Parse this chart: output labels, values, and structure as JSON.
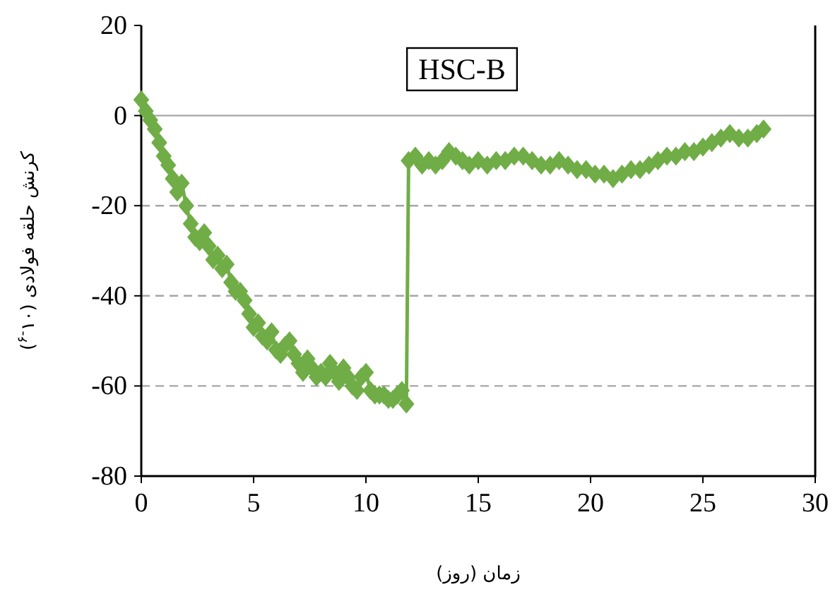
{
  "chart_data": {
    "type": "line",
    "title": "HSC-B",
    "xlabel": "زمان (روز)",
    "ylabel": "کرنش حلقه فولادی (۱۰$^{-۶}$)",
    "x": [
      0,
      0.2,
      0.4,
      0.6,
      0.8,
      1.0,
      1.2,
      1.4,
      1.6,
      1.8,
      2.0,
      2.2,
      2.4,
      2.6,
      2.8,
      3.0,
      3.2,
      3.4,
      3.6,
      3.8,
      4.0,
      4.2,
      4.4,
      4.6,
      4.8,
      5.0,
      5.2,
      5.4,
      5.6,
      5.8,
      6.0,
      6.2,
      6.4,
      6.6,
      6.8,
      7.0,
      7.2,
      7.4,
      7.6,
      7.8,
      8.0,
      8.2,
      8.4,
      8.6,
      8.8,
      9.0,
      9.2,
      9.4,
      9.6,
      9.8,
      10.0,
      10.2,
      10.4,
      10.6,
      10.8,
      11.0,
      11.2,
      11.4,
      11.6,
      11.8,
      11.9,
      12.2,
      12.5,
      12.8,
      13.1,
      13.4,
      13.7,
      14.0,
      14.3,
      14.6,
      15.0,
      15.4,
      15.8,
      16.2,
      16.6,
      17.0,
      17.4,
      17.8,
      18.2,
      18.6,
      19.0,
      19.4,
      19.8,
      20.2,
      20.6,
      21.0,
      21.4,
      21.8,
      22.2,
      22.6,
      23.0,
      23.4,
      23.8,
      24.2,
      24.6,
      25.0,
      25.4,
      25.8,
      26.2,
      26.6,
      27.0,
      27.4,
      27.7
    ],
    "series": [
      {
        "color": "#70ad47",
        "values": [
          3.5,
          1,
          -1,
          -3,
          -6,
          -9,
          -11,
          -14,
          -17,
          -15,
          -20,
          -24,
          -27,
          -28,
          -26,
          -29,
          -32,
          -31,
          -34,
          -33,
          -37,
          -39,
          -39,
          -41,
          -44,
          -47,
          -46,
          -49,
          -50,
          -48,
          -52,
          -53,
          -51,
          -50,
          -53,
          -55,
          -57,
          -54,
          -56,
          -58,
          -57,
          -58,
          -55,
          -57,
          -59,
          -56,
          -58,
          -60,
          -61,
          -58,
          -57,
          -61,
          -62,
          -62,
          -62,
          -63,
          -63,
          -62,
          -61,
          -64,
          -10,
          -9,
          -11,
          -10,
          -11,
          -10,
          -8,
          -9,
          -10,
          -11,
          -10,
          -11,
          -10,
          -10,
          -9,
          -9,
          -10,
          -11,
          -11,
          -10,
          -11,
          -12,
          -12,
          -13,
          -13,
          -14,
          -13,
          -12,
          -12,
          -11,
          -10,
          -9,
          -9,
          -8,
          -8,
          -7,
          -6,
          -5,
          -4,
          -5,
          -5,
          -4,
          -3
        ]
      }
    ],
    "xlim": [
      0,
      30
    ],
    "xticks": [
      0,
      5,
      10,
      15,
      20,
      25,
      30
    ],
    "ylim": [
      -80,
      20
    ],
    "yticks": [
      -80,
      -60,
      -40,
      -20,
      0,
      20
    ],
    "grid": "y",
    "marker": "diamond",
    "line_style": "solid"
  }
}
